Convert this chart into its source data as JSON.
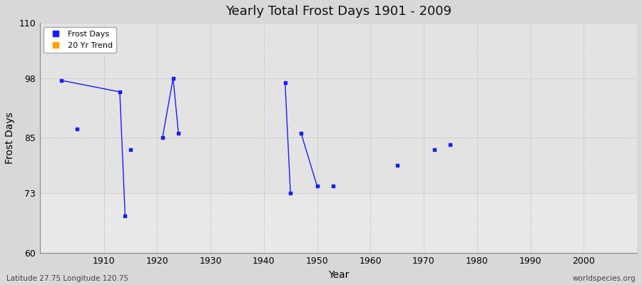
{
  "title": "Yearly Total Frost Days 1901 - 2009",
  "xlabel": "Year",
  "ylabel": "Frost Days",
  "subtitle": "Latitude 27.75 Longitude 120.75",
  "watermark": "worldspecies.org",
  "xlim": [
    1898,
    2010
  ],
  "ylim": [
    60,
    110
  ],
  "yticks": [
    60,
    73,
    85,
    98,
    110
  ],
  "xticks": [
    1910,
    1920,
    1930,
    1940,
    1950,
    1960,
    1970,
    1980,
    1990,
    2000
  ],
  "fig_bg_color": "#d8d8d8",
  "plot_bg_color": "#e8e8e8",
  "band_color": "#dcdcdc",
  "data_color": "#1a1aff",
  "frost_days": [
    [
      1902,
      97.5
    ],
    [
      1905,
      87
    ],
    [
      1913,
      95
    ],
    [
      1915,
      82.5
    ],
    [
      1921,
      85
    ],
    [
      1923,
      98
    ],
    [
      1944,
      97
    ],
    [
      1947,
      86
    ],
    [
      1950,
      74.5
    ],
    [
      1953,
      74.5
    ],
    [
      1965,
      79
    ],
    [
      1972,
      82.5
    ],
    [
      1975,
      83.5
    ]
  ],
  "line_segments": [
    [
      [
        1902,
        97.5
      ],
      [
        1913,
        95
      ]
    ],
    [
      [
        1913,
        95
      ],
      [
        1914,
        68
      ]
    ],
    [
      [
        1921,
        85
      ],
      [
        1923,
        98
      ]
    ],
    [
      [
        1923,
        98
      ],
      [
        1924,
        86
      ]
    ],
    [
      [
        1944,
        97
      ],
      [
        1945,
        73
      ]
    ],
    [
      [
        1947,
        86
      ],
      [
        1950,
        74.5
      ]
    ]
  ],
  "extra_points": [
    [
      1914,
      68
    ],
    [
      1924,
      86
    ],
    [
      1945,
      73
    ]
  ],
  "legend_entries": [
    {
      "label": "Frost Days",
      "color": "#1a1aff",
      "marker": "s"
    },
    {
      "label": "20 Yr Trend",
      "color": "#ffa500",
      "marker": "s"
    }
  ]
}
